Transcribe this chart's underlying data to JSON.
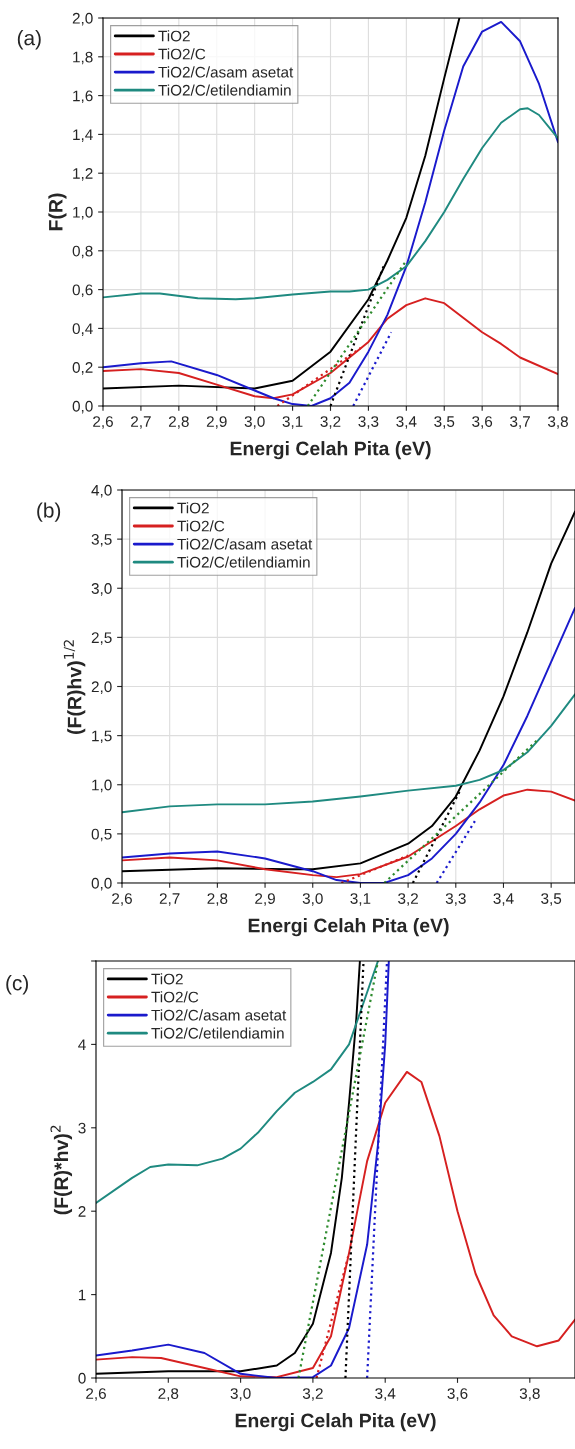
{
  "chart_data": [
    {
      "type": "line",
      "xlabel": "Energi Celah Pita (eV)",
      "ylabel": "F(R)",
      "annotations": [
        "(a)"
      ],
      "xlim": [
        2.6,
        3.8
      ],
      "ylim": [
        0,
        2.0
      ],
      "xticks": [
        {
          "value": 2.6,
          "label": "2,6"
        },
        {
          "value": 2.7,
          "label": "2,7"
        },
        {
          "value": 2.8,
          "label": "2,8"
        },
        {
          "value": 2.9,
          "label": "2,9"
        },
        {
          "value": 3.0,
          "label": "3,0"
        },
        {
          "value": 3.1,
          "label": "3,1"
        },
        {
          "value": 3.2,
          "label": "3,2"
        },
        {
          "value": 3.3,
          "label": "3,3"
        },
        {
          "value": 3.4,
          "label": "3,4"
        },
        {
          "value": 3.5,
          "label": "3,5"
        },
        {
          "value": 3.6,
          "label": "3,6"
        },
        {
          "value": 3.7,
          "label": "3,7"
        },
        {
          "value": 3.8,
          "label": "3,8"
        }
      ],
      "yticks": [
        {
          "value": 0,
          "label": "0,0"
        },
        {
          "value": 0.2,
          "label": "0,2"
        },
        {
          "value": 0.4,
          "label": "0,4"
        },
        {
          "value": 0.6,
          "label": "0,6"
        },
        {
          "value": 0.8,
          "label": "0,8"
        },
        {
          "value": 1.0,
          "label": "1,0"
        },
        {
          "value": 1.2,
          "label": "1,2"
        },
        {
          "value": 1.4,
          "label": "1,4"
        },
        {
          "value": 1.6,
          "label": "1,6"
        },
        {
          "value": 1.8,
          "label": "1,8"
        },
        {
          "value": 2.0,
          "label": "2,0"
        }
      ],
      "grid": true,
      "legend": "top left",
      "line_style": "solid",
      "marker": "none",
      "series": [
        {
          "name": "TiO2",
          "color": "#000000",
          "x": [
            2.6,
            2.8,
            3.0,
            3.1,
            3.2,
            3.3,
            3.35,
            3.4,
            3.45,
            3.5,
            3.54
          ],
          "values": [
            0.09,
            0.105,
            0.09,
            0.13,
            0.28,
            0.55,
            0.75,
            0.97,
            1.29,
            1.69,
            2.0
          ]
        },
        {
          "name": "TiO2/C",
          "color": "#d62020",
          "x": [
            2.6,
            2.7,
            2.8,
            2.9,
            3.0,
            3.05,
            3.1,
            3.2,
            3.3,
            3.35,
            3.4,
            3.45,
            3.5,
            3.6,
            3.65,
            3.7,
            3.8
          ],
          "values": [
            0.18,
            0.19,
            0.17,
            0.11,
            0.05,
            0.04,
            0.06,
            0.17,
            0.33,
            0.45,
            0.52,
            0.555,
            0.53,
            0.38,
            0.32,
            0.25,
            0.165
          ]
        },
        {
          "name": "TiO2/C/asam asetat",
          "color": "#1a1acc",
          "x": [
            2.6,
            2.7,
            2.78,
            2.9,
            3.0,
            3.05,
            3.1,
            3.15,
            3.2,
            3.25,
            3.3,
            3.35,
            3.4,
            3.45,
            3.5,
            3.55,
            3.6,
            3.65,
            3.7,
            3.75,
            3.8
          ],
          "values": [
            0.2,
            0.22,
            0.23,
            0.16,
            0.08,
            0.04,
            0.01,
            0.0,
            0.04,
            0.12,
            0.28,
            0.47,
            0.72,
            1.05,
            1.42,
            1.75,
            1.93,
            1.98,
            1.88,
            1.66,
            1.36
          ]
        },
        {
          "name": "TiO2/C/etilendiamin",
          "color": "#1f8a80",
          "x": [
            2.6,
            2.7,
            2.75,
            2.85,
            2.95,
            3.0,
            3.1,
            3.2,
            3.25,
            3.3,
            3.35,
            3.4,
            3.45,
            3.5,
            3.55,
            3.6,
            3.65,
            3.7,
            3.72,
            3.75,
            3.8
          ],
          "values": [
            0.56,
            0.58,
            0.58,
            0.555,
            0.55,
            0.555,
            0.575,
            0.59,
            0.59,
            0.6,
            0.65,
            0.72,
            0.85,
            1.0,
            1.17,
            1.33,
            1.46,
            1.53,
            1.535,
            1.5,
            1.38
          ]
        },
        {
          "color": "#000000",
          "line_style": "dotted",
          "x": [
            3.2,
            3.34
          ],
          "values": [
            0.0,
            0.72
          ]
        },
        {
          "color": "#d62020",
          "line_style": "dotted",
          "x": [
            3.06,
            3.28
          ],
          "values": [
            0.0,
            0.3
          ]
        },
        {
          "color": "#2e8b2e",
          "line_style": "dotted",
          "x": [
            3.14,
            3.4
          ],
          "values": [
            0.0,
            0.75
          ]
        },
        {
          "color": "#1a1acc",
          "line_style": "dotted",
          "x": [
            3.26,
            3.36
          ],
          "values": [
            0.0,
            0.38
          ]
        }
      ]
    },
    {
      "type": "line",
      "xlabel": "Energi Celah Pita (eV)",
      "ylabel": "(F(R)hv)$^{1/2}$",
      "annotations": [
        "(b)"
      ],
      "xlim": [
        2.6,
        3.55
      ],
      "ylim": [
        0,
        4.0
      ],
      "xticks": [
        {
          "value": 2.6,
          "label": "2,6"
        },
        {
          "value": 2.7,
          "label": "2,7"
        },
        {
          "value": 2.8,
          "label": "2,8"
        },
        {
          "value": 2.9,
          "label": "2,9"
        },
        {
          "value": 3.0,
          "label": "3,0"
        },
        {
          "value": 3.1,
          "label": "3,1"
        },
        {
          "value": 3.2,
          "label": "3,2"
        },
        {
          "value": 3.3,
          "label": "3,3"
        },
        {
          "value": 3.4,
          "label": "3,4"
        },
        {
          "value": 3.5,
          "label": "3,5"
        }
      ],
      "yticks": [
        {
          "value": 0,
          "label": "0,0"
        },
        {
          "value": 0.5,
          "label": "0,5"
        },
        {
          "value": 1.0,
          "label": "1,0"
        },
        {
          "value": 1.5,
          "label": "1,5"
        },
        {
          "value": 2.0,
          "label": "2,0"
        },
        {
          "value": 2.5,
          "label": "2,5"
        },
        {
          "value": 3.0,
          "label": "3,0"
        },
        {
          "value": 3.5,
          "label": "3,5"
        },
        {
          "value": 4.0,
          "label": "4,0"
        }
      ],
      "grid": true,
      "legend": "top left",
      "line_style": "solid",
      "marker": "none",
      "series": [
        {
          "name": "TiO2",
          "color": "#000000",
          "x": [
            2.6,
            2.8,
            2.95,
            3.0,
            3.1,
            3.2,
            3.25,
            3.3,
            3.35,
            3.4,
            3.45,
            3.5,
            3.55
          ],
          "values": [
            0.12,
            0.15,
            0.14,
            0.14,
            0.2,
            0.4,
            0.58,
            0.88,
            1.35,
            1.9,
            2.55,
            3.25,
            3.78
          ]
        },
        {
          "name": "TiO2/C",
          "color": "#d62020",
          "x": [
            2.6,
            2.7,
            2.8,
            2.9,
            3.0,
            3.05,
            3.1,
            3.2,
            3.3,
            3.35,
            3.4,
            3.45,
            3.5,
            3.55
          ],
          "values": [
            0.23,
            0.26,
            0.23,
            0.14,
            0.08,
            0.06,
            0.09,
            0.27,
            0.58,
            0.75,
            0.89,
            0.95,
            0.93,
            0.84
          ]
        },
        {
          "name": "TiO2/C/asam asetat",
          "color": "#1a1acc",
          "x": [
            2.6,
            2.7,
            2.8,
            2.9,
            3.0,
            3.05,
            3.1,
            3.15,
            3.2,
            3.25,
            3.3,
            3.35,
            3.4,
            3.45,
            3.5,
            3.55
          ],
          "values": [
            0.26,
            0.3,
            0.32,
            0.25,
            0.12,
            0.03,
            0.0,
            0.0,
            0.08,
            0.25,
            0.5,
            0.82,
            1.2,
            1.7,
            2.25,
            2.8
          ]
        },
        {
          "name": "TiO2/C/etilendiamin",
          "color": "#1f8a80",
          "x": [
            2.6,
            2.7,
            2.8,
            2.9,
            3.0,
            3.1,
            3.2,
            3.3,
            3.35,
            3.4,
            3.45,
            3.5,
            3.55
          ],
          "values": [
            0.72,
            0.78,
            0.8,
            0.8,
            0.83,
            0.88,
            0.94,
            0.99,
            1.05,
            1.15,
            1.33,
            1.6,
            1.92
          ]
        },
        {
          "color": "#000000",
          "line_style": "dotted",
          "x": [
            3.21,
            3.31
          ],
          "values": [
            0.0,
            0.95
          ]
        },
        {
          "color": "#d62020",
          "line_style": "dotted",
          "x": [
            3.06,
            3.2
          ],
          "values": [
            0.0,
            0.28
          ]
        },
        {
          "color": "#2e8b2e",
          "line_style": "dotted",
          "x": [
            3.15,
            3.47
          ],
          "values": [
            0.0,
            1.45
          ]
        },
        {
          "color": "#1a1acc",
          "line_style": "dotted",
          "x": [
            3.26,
            3.34
          ],
          "values": [
            0.0,
            0.63
          ]
        }
      ]
    },
    {
      "type": "line",
      "xlabel": "Energi Celah Pita (eV)",
      "ylabel": "(F(R)*hv)$^{2}$",
      "annotations": [
        "(c)"
      ],
      "xlim": [
        2.6,
        3.925
      ],
      "ylim": [
        0,
        5
      ],
      "xticks": [
        {
          "value": 2.6,
          "label": "2,6"
        },
        {
          "value": 2.8,
          "label": "2,8"
        },
        {
          "value": 3.0,
          "label": "3,0"
        },
        {
          "value": 3.2,
          "label": "3,2"
        },
        {
          "value": 3.4,
          "label": "3,4"
        },
        {
          "value": 3.6,
          "label": "3,6"
        },
        {
          "value": 3.8,
          "label": "3,8"
        }
      ],
      "yticks": [
        0,
        1,
        2,
        3,
        4,
        {
          "value": 5,
          "label": null
        }
      ],
      "legend": "top left",
      "line_style": "solid",
      "marker": "none",
      "series": [
        {
          "name": "TiO2",
          "color": "#000000",
          "x": [
            2.6,
            2.8,
            3.0,
            3.1,
            3.15,
            3.2,
            3.25,
            3.28,
            3.3,
            3.32,
            3.33
          ],
          "values": [
            0.05,
            0.08,
            0.08,
            0.15,
            0.3,
            0.65,
            1.5,
            2.4,
            3.3,
            4.3,
            5.0
          ]
        },
        {
          "name": "TiO2/C",
          "color": "#d62020",
          "x": [
            2.6,
            2.7,
            2.78,
            2.9,
            3.0,
            3.1,
            3.2,
            3.25,
            3.3,
            3.35,
            3.4,
            3.46,
            3.5,
            3.55,
            3.6,
            3.65,
            3.7,
            3.75,
            3.82,
            3.88,
            3.925
          ],
          "values": [
            0.22,
            0.25,
            0.24,
            0.12,
            0.02,
            0.01,
            0.12,
            0.5,
            1.5,
            2.6,
            3.3,
            3.67,
            3.55,
            2.9,
            2.0,
            1.25,
            0.75,
            0.5,
            0.38,
            0.45,
            0.7
          ]
        },
        {
          "name": "TiO2/C/asam asetat",
          "color": "#1a1acc",
          "x": [
            2.6,
            2.7,
            2.8,
            2.9,
            3.0,
            3.1,
            3.2,
            3.25,
            3.3,
            3.35,
            3.38,
            3.4,
            3.41
          ],
          "values": [
            0.27,
            0.33,
            0.4,
            0.3,
            0.05,
            0.0,
            0.01,
            0.15,
            0.6,
            1.6,
            2.8,
            4.0,
            5.0
          ]
        },
        {
          "name": "TiO2/C/etilendiamin",
          "color": "#1f8a80",
          "x": [
            2.6,
            2.7,
            2.75,
            2.8,
            2.88,
            2.95,
            3.0,
            3.05,
            3.1,
            3.15,
            3.2,
            3.25,
            3.3,
            3.34,
            3.38
          ],
          "values": [
            2.1,
            2.4,
            2.53,
            2.56,
            2.55,
            2.63,
            2.75,
            2.95,
            3.2,
            3.42,
            3.55,
            3.7,
            4.0,
            4.5,
            5.0
          ]
        },
        {
          "color": "#000000",
          "line_style": "dotted",
          "x": [
            3.29,
            3.34
          ],
          "values": [
            0.0,
            5.0
          ]
        },
        {
          "color": "#d62020",
          "line_style": "dotted",
          "x": [
            3.21,
            3.3
          ],
          "values": [
            0.0,
            1.5
          ]
        },
        {
          "color": "#2e8b2e",
          "line_style": "dotted",
          "x": [
            3.16,
            3.38
          ],
          "values": [
            0.0,
            5.0
          ]
        },
        {
          "color": "#1a1acc",
          "line_style": "dotted",
          "x": [
            3.35,
            3.405
          ],
          "values": [
            0.0,
            5.0
          ]
        }
      ]
    }
  ]
}
